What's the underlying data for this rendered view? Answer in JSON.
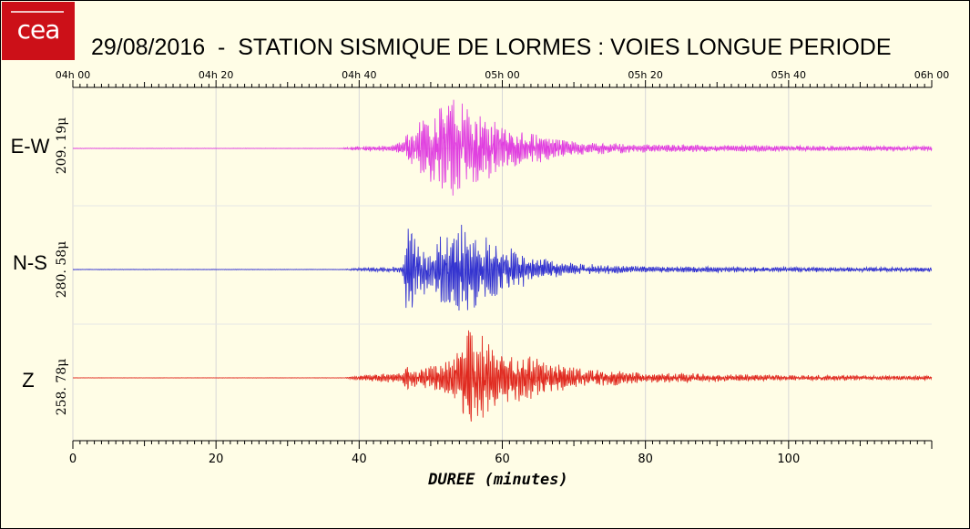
{
  "title": "29/08/2016  -  STATION SISMIQUE DE LORMES : VOIES LONGUE PERIODE",
  "logo_text": "cea",
  "colors": {
    "background": "#fffde6",
    "logo": "#cc1018",
    "ew": "#e040e0",
    "ns": "#3434d0",
    "z": "#e02a20",
    "grid": "#d8d8d8"
  },
  "chart_data": {
    "type": "line",
    "xlabel": "DUREE (minutes)",
    "xlim": [
      0,
      120
    ],
    "x_ticks": [
      0,
      20,
      40,
      60,
      80,
      100
    ],
    "time_ticks": [
      {
        "minute": 0,
        "label": "04h 00"
      },
      {
        "minute": 20,
        "label": "04h 20"
      },
      {
        "minute": 40,
        "label": "04h 40"
      },
      {
        "minute": 60,
        "label": "05h 00"
      },
      {
        "minute": 80,
        "label": "05h 20"
      },
      {
        "minute": 100,
        "label": "05h 40"
      },
      {
        "minute": 120,
        "label": "06h 00"
      }
    ],
    "channels": [
      {
        "name": "E-W",
        "scale_label": "209. 19μ",
        "color": "#e040e0",
        "envelope": [
          [
            0,
            0.004
          ],
          [
            37,
            0.004
          ],
          [
            40,
            0.04
          ],
          [
            45,
            0.06
          ],
          [
            46.5,
            0.25
          ],
          [
            48,
            0.5
          ],
          [
            52,
            0.95
          ],
          [
            54,
            0.8
          ],
          [
            56,
            0.65
          ],
          [
            60,
            0.4
          ],
          [
            65,
            0.25
          ],
          [
            70,
            0.12
          ],
          [
            80,
            0.07
          ],
          [
            100,
            0.05
          ],
          [
            120,
            0.04
          ]
        ]
      },
      {
        "name": "N-S",
        "scale_label": "280. 58μ",
        "color": "#3434d0",
        "envelope": [
          [
            0,
            0.004
          ],
          [
            38,
            0.004
          ],
          [
            40,
            0.03
          ],
          [
            46,
            0.05
          ],
          [
            46.8,
            1.0
          ],
          [
            48,
            0.45
          ],
          [
            50,
            0.4
          ],
          [
            54,
            0.85
          ],
          [
            56,
            0.65
          ],
          [
            60,
            0.4
          ],
          [
            65,
            0.2
          ],
          [
            70,
            0.1
          ],
          [
            80,
            0.05
          ],
          [
            100,
            0.04
          ],
          [
            120,
            0.04
          ]
        ]
      },
      {
        "name": "Z",
        "scale_label": "258. 78μ",
        "color": "#e02a20",
        "envelope": [
          [
            0,
            0.003
          ],
          [
            38,
            0.004
          ],
          [
            40,
            0.05
          ],
          [
            46,
            0.1
          ],
          [
            46.8,
            0.25
          ],
          [
            48,
            0.18
          ],
          [
            52,
            0.3
          ],
          [
            54,
            0.5
          ],
          [
            55,
            1.0
          ],
          [
            57,
            0.8
          ],
          [
            60,
            0.55
          ],
          [
            65,
            0.35
          ],
          [
            70,
            0.2
          ],
          [
            80,
            0.1
          ],
          [
            100,
            0.05
          ],
          [
            120,
            0.04
          ]
        ]
      }
    ]
  }
}
